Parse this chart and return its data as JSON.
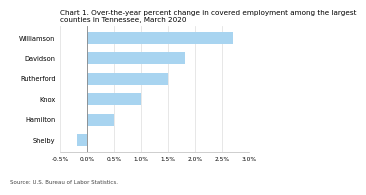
{
  "title": "Chart 1. Over-the-year percent change in covered employment among the largest\ncounties in Tennessee, March 2020",
  "categories": [
    "Williamson",
    "Davidson",
    "Rutherford",
    "Knox",
    "Hamilton",
    "Shelby"
  ],
  "values": [
    2.7,
    1.8,
    1.5,
    1.0,
    0.5,
    -0.2
  ],
  "bar_color": "#a8d4f0",
  "xlim": [
    -0.5,
    3.0
  ],
  "xtick_vals": [
    -0.5,
    0.0,
    0.5,
    1.0,
    1.5,
    2.0,
    2.5,
    3.0
  ],
  "xtick_labels": [
    "-0.5%",
    "0.0%",
    "0.5%",
    "1.0%",
    "1.5%",
    "2.0%",
    "2.5%",
    "3.0%"
  ],
  "source": "Source: U.S. Bureau of Labor Statistics.",
  "title_fontsize": 5.2,
  "label_fontsize": 4.8,
  "tick_fontsize": 4.2,
  "source_fontsize": 4.0
}
